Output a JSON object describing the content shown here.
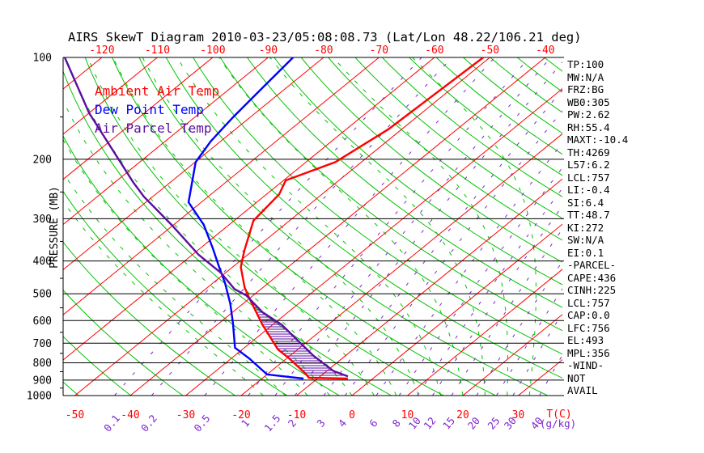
{
  "header": {
    "title": "AIRS SkewT Diagram 2010-03-23/05:08:08.73 (Lat/Lon 48.22/106.21 deg)"
  },
  "legend": {
    "items": [
      {
        "label": "Ambient Air Temp",
        "color": "#ff0000"
      },
      {
        "label": "Dew Point Temp",
        "color": "#0000ff"
      },
      {
        "label": "Air Parcel Temp",
        "color": "#5a0fa0"
      }
    ]
  },
  "readings": {
    "lines": [
      "TP:100",
      "MW:N/A",
      "FRZ:BG",
      "WB0:305",
      "PW:2.62",
      "RH:55.4",
      "MAXT:-10.4",
      "TH:4269",
      "L57:6.2",
      "LCL:757",
      "LI:-0.4",
      "SI:6.4",
      "TT:48.7",
      "KI:272",
      "SW:N/A",
      "EI:0.1",
      "-PARCEL-",
      "CAPE:436",
      "CINH:225",
      "LCL:757",
      "CAP:0.0",
      "LFC:756",
      "EL:493",
      "MPL:356",
      "-WIND-",
      "NOT",
      "AVAIL"
    ]
  },
  "chart_data": {
    "type": "skewt-log-p sounding",
    "title": "AIRS SkewT Diagram 2010-03-23/05:08:08.73 (Lat/Lon 48.22/106.21 deg)",
    "pressure_axis": {
      "label": "PRESSURE (MB)",
      "ticks": [
        100,
        200,
        300,
        400,
        500,
        600,
        700,
        800,
        900,
        1000
      ],
      "minor_ticks": [
        150,
        250,
        350,
        450,
        550,
        650,
        750,
        850,
        950
      ],
      "scale": "log",
      "range": [
        100,
        1000
      ]
    },
    "top_temp_ticks": [
      -120,
      -110,
      -100,
      -90,
      -80,
      -70,
      -60,
      -50,
      -40
    ],
    "bottom_temp_ticks": [
      -50,
      -40,
      -30,
      -20,
      -10,
      0,
      10,
      20,
      30
    ],
    "temp_unit_label": "T(C)",
    "mixing_ratio_labels": [
      "0.1",
      "0.2",
      "0.5",
      "1",
      "1.5",
      "2",
      "3",
      "4",
      "6",
      "8",
      "10",
      "12",
      "15",
      "20",
      "25",
      "30",
      "40"
    ],
    "mixing_ratio_values": [
      0.1,
      0.2,
      0.5,
      1,
      1.5,
      2,
      3,
      4,
      6,
      8,
      10,
      12,
      15,
      20,
      25,
      30,
      40
    ],
    "mixing_ratio_unit": "(g/kg)",
    "background": {
      "isotherms": {
        "color": "#ff0000",
        "temps_c": [
          -120,
          -110,
          -100,
          -90,
          -80,
          -70,
          -60,
          -50,
          -40,
          -30,
          -20,
          -10,
          0,
          10,
          20,
          30
        ]
      },
      "dry_adiabats": {
        "color": "#00c300",
        "theta_start_c": -49.3,
        "theta_step_c": 9.4,
        "theta_end_c": 181
      },
      "moist_adiabats": {
        "color": "#00c300",
        "thetaw_c": [
          -16,
          -12,
          -8,
          -4,
          0,
          4,
          8,
          12,
          16,
          20,
          24,
          28,
          32
        ]
      },
      "mixing_ratio_lines": {
        "color": "#7d26cd"
      }
    },
    "series": [
      {
        "name": "Ambient Air Temp",
        "color": "#ff0000",
        "points_p_t": [
          [
            100,
            -51.2
          ],
          [
            163,
            -52.4
          ],
          [
            204,
            -54.7
          ],
          [
            231,
            -59.6
          ],
          [
            254,
            -57.7
          ],
          [
            304,
            -56.5
          ],
          [
            373,
            -51.5
          ],
          [
            417,
            -48.5
          ],
          [
            479,
            -43.3
          ],
          [
            514,
            -40.2
          ],
          [
            618,
            -31.8
          ],
          [
            730,
            -23.6
          ],
          [
            776,
            -19.6
          ],
          [
            862,
            -13.2
          ],
          [
            886,
            -11.7
          ],
          [
            891,
            -4.5
          ]
        ]
      },
      {
        "name": "Dew Point Temp",
        "color": "#0000ff",
        "points_p_t": [
          [
            100,
            -85.5
          ],
          [
            121,
            -84.4
          ],
          [
            150,
            -83.1
          ],
          [
            177,
            -81.8
          ],
          [
            204,
            -79.9
          ],
          [
            268,
            -72.3
          ],
          [
            313,
            -64.5
          ],
          [
            367,
            -57.7
          ],
          [
            412,
            -52.9
          ],
          [
            465,
            -47.8
          ],
          [
            535,
            -42.3
          ],
          [
            611,
            -37.5
          ],
          [
            722,
            -31.7
          ],
          [
            776,
            -26.8
          ],
          [
            866,
            -20.0
          ],
          [
            891,
            -12.5
          ]
        ]
      },
      {
        "name": "Air Parcel Temp",
        "color": "#5a0fa0",
        "points_p_t": [
          [
            100,
            -126.7
          ],
          [
            146,
            -110.0
          ],
          [
            234,
            -86.7
          ],
          [
            258,
            -81.6
          ],
          [
            313,
            -70.3
          ],
          [
            383,
            -58.9
          ],
          [
            433,
            -50.9
          ],
          [
            484,
            -44.8
          ],
          [
            506,
            -41.2
          ],
          [
            566,
            -34.7
          ],
          [
            618,
            -28.3
          ],
          [
            762,
            -15.8
          ],
          [
            846,
            -8.8
          ],
          [
            877,
            -5.0
          ]
        ]
      }
    ],
    "cape_hatch": {
      "between": [
        "Ambient Air Temp",
        "Air Parcel Temp"
      ],
      "color": "#5a0fa0",
      "style": "horizontal-lines"
    }
  }
}
